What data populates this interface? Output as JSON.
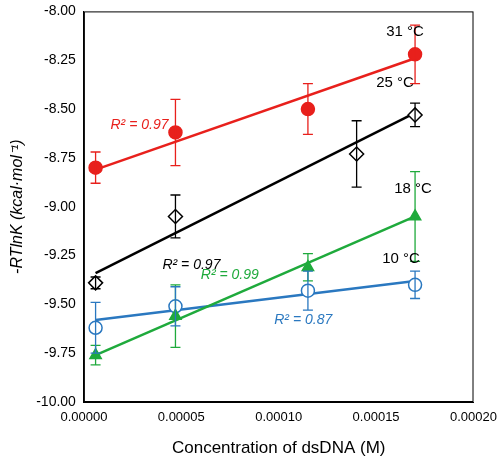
{
  "chart_data": {
    "type": "scatter",
    "x_label": "Concentration of dsDNA (M)",
    "y_label": "-RTlnK (kcal·mol⁻¹)",
    "xlim": [
      0,
      0.0002
    ],
    "ylim": [
      -10,
      -8
    ],
    "xticks": [
      {
        "value": 0,
        "label": "0.00000"
      },
      {
        "value": 5e-05,
        "label": "0.00005"
      },
      {
        "value": 0.0001,
        "label": "0.00010"
      },
      {
        "value": 0.00015,
        "label": "0.00015"
      },
      {
        "value": 0.0002,
        "label": "0.00020"
      }
    ],
    "yticks": [
      {
        "value": -10,
        "label": "-10.00"
      },
      {
        "value": -9.75,
        "label": "-9.75"
      },
      {
        "value": -9.5,
        "label": "-9.50"
      },
      {
        "value": -9.25,
        "label": "-9.25"
      },
      {
        "value": -9,
        "label": "-9.00"
      },
      {
        "value": -8.75,
        "label": "-8.75"
      },
      {
        "value": -8.5,
        "label": "-8.50"
      },
      {
        "value": -8.25,
        "label": "-8.25"
      },
      {
        "value": -8,
        "label": "-8.00"
      }
    ],
    "grid": false,
    "series": [
      {
        "name": "31 °C",
        "color": "#e8201c",
        "marker": "circle_filled",
        "x": [
          6e-06,
          4.7e-05,
          0.000115,
          0.00017
        ],
        "values": [
          -8.8,
          -8.62,
          -8.5,
          -8.22
        ],
        "errors": [
          0.08,
          0.17,
          0.13,
          0.15
        ],
        "fit": {
          "x": [
            6e-06,
            0.00017
          ],
          "values": [
            -8.81,
            -8.24
          ]
        },
        "annotation": "R² = 0.97"
      },
      {
        "name": "25 °C",
        "color": "#000000",
        "marker": "diamond_open",
        "x": [
          6e-06,
          4.7e-05,
          0.00014,
          0.00017
        ],
        "values": [
          -9.39,
          -9.05,
          -8.73,
          -8.53
        ],
        "errors": [
          0.03,
          0.11,
          0.17,
          0.06
        ],
        "fit": {
          "x": [
            6e-06,
            0.00017
          ],
          "values": [
            -9.34,
            -8.52
          ]
        },
        "annotation": "R² = 0.97"
      },
      {
        "name": "18 °C",
        "color": "#1faa3c",
        "marker": "triangle_filled",
        "x": [
          6e-06,
          4.7e-05,
          0.000115,
          0.00017
        ],
        "values": [
          -9.76,
          -9.56,
          -9.31,
          -9.05
        ],
        "errors": [
          0.05,
          0.16,
          0.07,
          0.23
        ],
        "fit": {
          "x": [
            6e-06,
            0.00017
          ],
          "values": [
            -9.76,
            -9.05
          ]
        },
        "annotation": "R² = 0.99"
      },
      {
        "name": "10 °C",
        "color": "#2a78c0",
        "marker": "circle_open",
        "x": [
          6e-06,
          4.7e-05,
          0.000115,
          0.00017
        ],
        "values": [
          -9.62,
          -9.51,
          -9.43,
          -9.4
        ],
        "errors": [
          0.13,
          0.1,
          0.1,
          0.07
        ],
        "fit": {
          "x": [
            6e-06,
            0.00017
          ],
          "values": [
            -9.58,
            -9.38
          ]
        },
        "annotation": "R² = 0.87"
      }
    ]
  }
}
